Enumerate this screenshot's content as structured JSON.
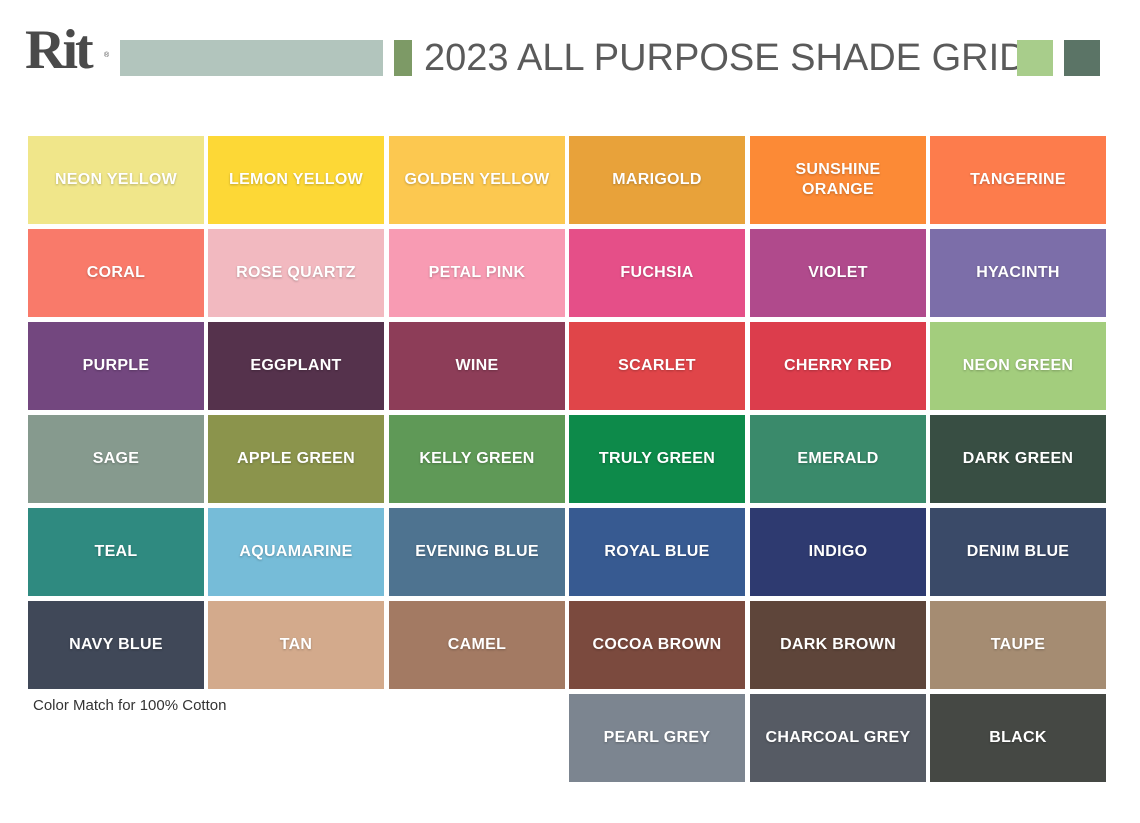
{
  "header": {
    "logo_text": "Rit",
    "logo_mark": "®",
    "title": "2023 ALL PURPOSE SHADE GRID",
    "accent_colors": {
      "wide_bar": "#b2c5bd",
      "small_bar": "#7d9a66",
      "light_square": "#a8cd8b",
      "dark_square": "#5b7466"
    }
  },
  "note": "Color Match for 100% Cotton",
  "swatches": [
    {
      "name": "NEON YELLOW",
      "color": "#f0e68a",
      "row": 0,
      "col": 0
    },
    {
      "name": "LEMON YELLOW",
      "color": "#fdd836",
      "row": 0,
      "col": 1
    },
    {
      "name": "GOLDEN YELLOW",
      "color": "#fcc850",
      "row": 0,
      "col": 2
    },
    {
      "name": "MARIGOLD",
      "color": "#e8a23a",
      "row": 0,
      "col": 3
    },
    {
      "name": "SUNSHINE ORANGE",
      "color": "#fc8a36",
      "row": 0,
      "col": 4
    },
    {
      "name": "TANGERINE",
      "color": "#fd7c4c",
      "row": 0,
      "col": 5
    },
    {
      "name": "CORAL",
      "color": "#f97a6a",
      "row": 1,
      "col": 0
    },
    {
      "name": "ROSE QUARTZ",
      "color": "#f2b9c0",
      "row": 1,
      "col": 1
    },
    {
      "name": "PETAL PINK",
      "color": "#f89bb3",
      "row": 1,
      "col": 2
    },
    {
      "name": "FUCHSIA",
      "color": "#e54f88",
      "row": 1,
      "col": 3
    },
    {
      "name": "VIOLET",
      "color": "#b04a8c",
      "row": 1,
      "col": 4
    },
    {
      "name": "HYACINTH",
      "color": "#7c6ea9",
      "row": 1,
      "col": 5
    },
    {
      "name": "PURPLE",
      "color": "#73477f",
      "row": 2,
      "col": 0
    },
    {
      "name": "EGGPLANT",
      "color": "#55324c",
      "row": 2,
      "col": 1
    },
    {
      "name": "WINE",
      "color": "#8d3d58",
      "row": 2,
      "col": 2
    },
    {
      "name": "SCARLET",
      "color": "#e04549",
      "row": 2,
      "col": 3
    },
    {
      "name": "CHERRY RED",
      "color": "#dc3d4c",
      "row": 2,
      "col": 4
    },
    {
      "name": "NEON GREEN",
      "color": "#a3cd7d",
      "row": 2,
      "col": 5
    },
    {
      "name": "SAGE",
      "color": "#869a8e",
      "row": 3,
      "col": 0
    },
    {
      "name": "APPLE GREEN",
      "color": "#8b944c",
      "row": 3,
      "col": 1
    },
    {
      "name": "KELLY GREEN",
      "color": "#5f9957",
      "row": 3,
      "col": 2
    },
    {
      "name": "TRULY GREEN",
      "color": "#0d8a4a",
      "row": 3,
      "col": 3
    },
    {
      "name": "EMERALD",
      "color": "#3a8a6b",
      "row": 3,
      "col": 4
    },
    {
      "name": "DARK GREEN",
      "color": "#384e43",
      "row": 3,
      "col": 5
    },
    {
      "name": "TEAL",
      "color": "#2f8a80",
      "row": 4,
      "col": 0
    },
    {
      "name": "AQUAMARINE",
      "color": "#76bcd8",
      "row": 4,
      "col": 1
    },
    {
      "name": "EVENING BLUE",
      "color": "#4e7390",
      "row": 4,
      "col": 2
    },
    {
      "name": "ROYAL BLUE",
      "color": "#375a91",
      "row": 4,
      "col": 3
    },
    {
      "name": "INDIGO",
      "color": "#2e3a70",
      "row": 4,
      "col": 4
    },
    {
      "name": "DENIM BLUE",
      "color": "#3a4a68",
      "row": 4,
      "col": 5
    },
    {
      "name": "NAVY BLUE",
      "color": "#404858",
      "row": 5,
      "col": 0
    },
    {
      "name": "TAN",
      "color": "#d3aa8c",
      "row": 5,
      "col": 1
    },
    {
      "name": "CAMEL",
      "color": "#a37a63",
      "row": 5,
      "col": 2
    },
    {
      "name": "COCOA BROWN",
      "color": "#7b4a3e",
      "row": 5,
      "col": 3
    },
    {
      "name": "DARK BROWN",
      "color": "#5e453a",
      "row": 5,
      "col": 4
    },
    {
      "name": "TAUPE",
      "color": "#a58c72",
      "row": 5,
      "col": 5
    },
    {
      "name": "PEARL GREY",
      "color": "#7c8590",
      "row": 6,
      "col": 3
    },
    {
      "name": "CHARCOAL GREY",
      "color": "#565b64",
      "row": 6,
      "col": 4
    },
    {
      "name": "BLACK",
      "color": "#454844",
      "row": 6,
      "col": 5
    }
  ]
}
